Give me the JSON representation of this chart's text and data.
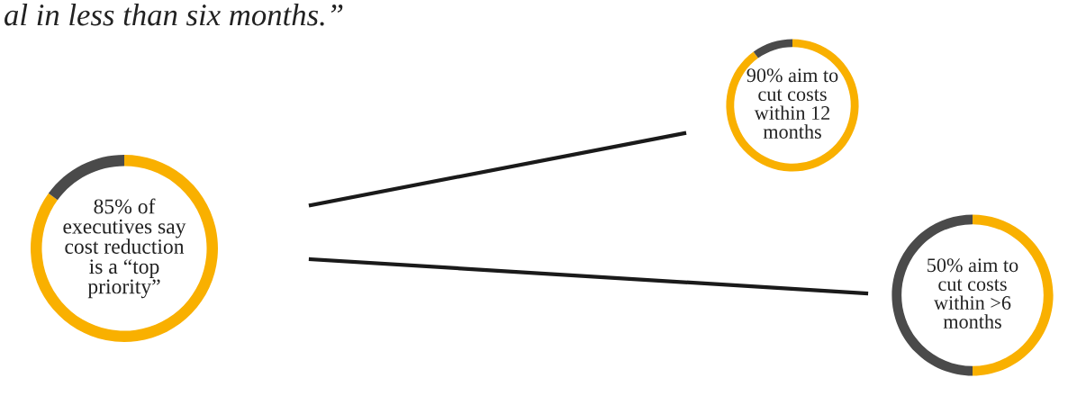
{
  "chart_data": [
    {
      "type": "donut",
      "title": "al in less than six months.”",
      "categories": [
        null,
        null
      ],
      "values": [
        85,
        15
      ],
      "colors": [
        "#f9b000",
        "#4a4a4a"
      ],
      "annotations": [
        "85% of\nexecutives say\ncost reduction\nis a “top\npriority”"
      ]
    },
    {
      "type": "donut",
      "categories": [
        null,
        null
      ],
      "values": [
        90,
        10
      ],
      "colors": [
        "#f9b000",
        "#4a4a4a"
      ],
      "annotations": [
        "90% aim to\ncut costs\nwithin 12\nmonths"
      ]
    },
    {
      "type": "donut",
      "categories": [
        null,
        null
      ],
      "values": [
        50,
        50
      ],
      "colors": [
        "#f9b000",
        "#4a4a4a"
      ],
      "annotations": [
        "50% aim to\ncut costs\nwithin >6\nmonths"
      ]
    }
  ]
}
